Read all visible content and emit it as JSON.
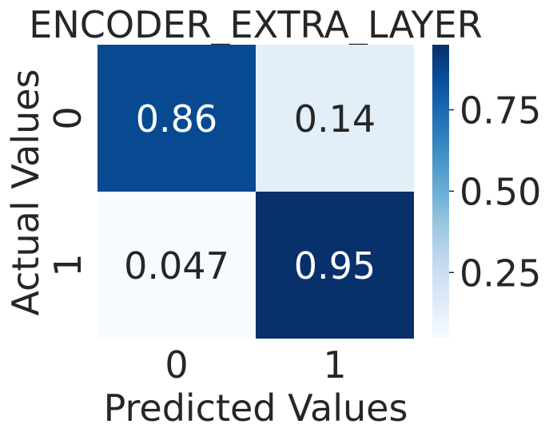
{
  "chart_data": {
    "type": "heatmap",
    "title": "ENCODER_EXTRA_LAYER",
    "xlabel": "Predicted Values",
    "ylabel": "Actual Values",
    "x_categories": [
      "0",
      "1"
    ],
    "y_categories": [
      "0",
      "1"
    ],
    "values": [
      [
        0.86,
        0.14
      ],
      [
        0.047,
        0.95
      ]
    ],
    "cell_labels": [
      [
        "0.86",
        "0.14"
      ],
      [
        "0.047",
        "0.95"
      ]
    ],
    "colormap": "Blues",
    "colorbar": {
      "range": [
        0.047,
        0.95
      ],
      "ticks": [
        0.25,
        0.5,
        0.75
      ],
      "tick_labels": [
        "0.25",
        "0.50",
        "0.75"
      ]
    }
  }
}
